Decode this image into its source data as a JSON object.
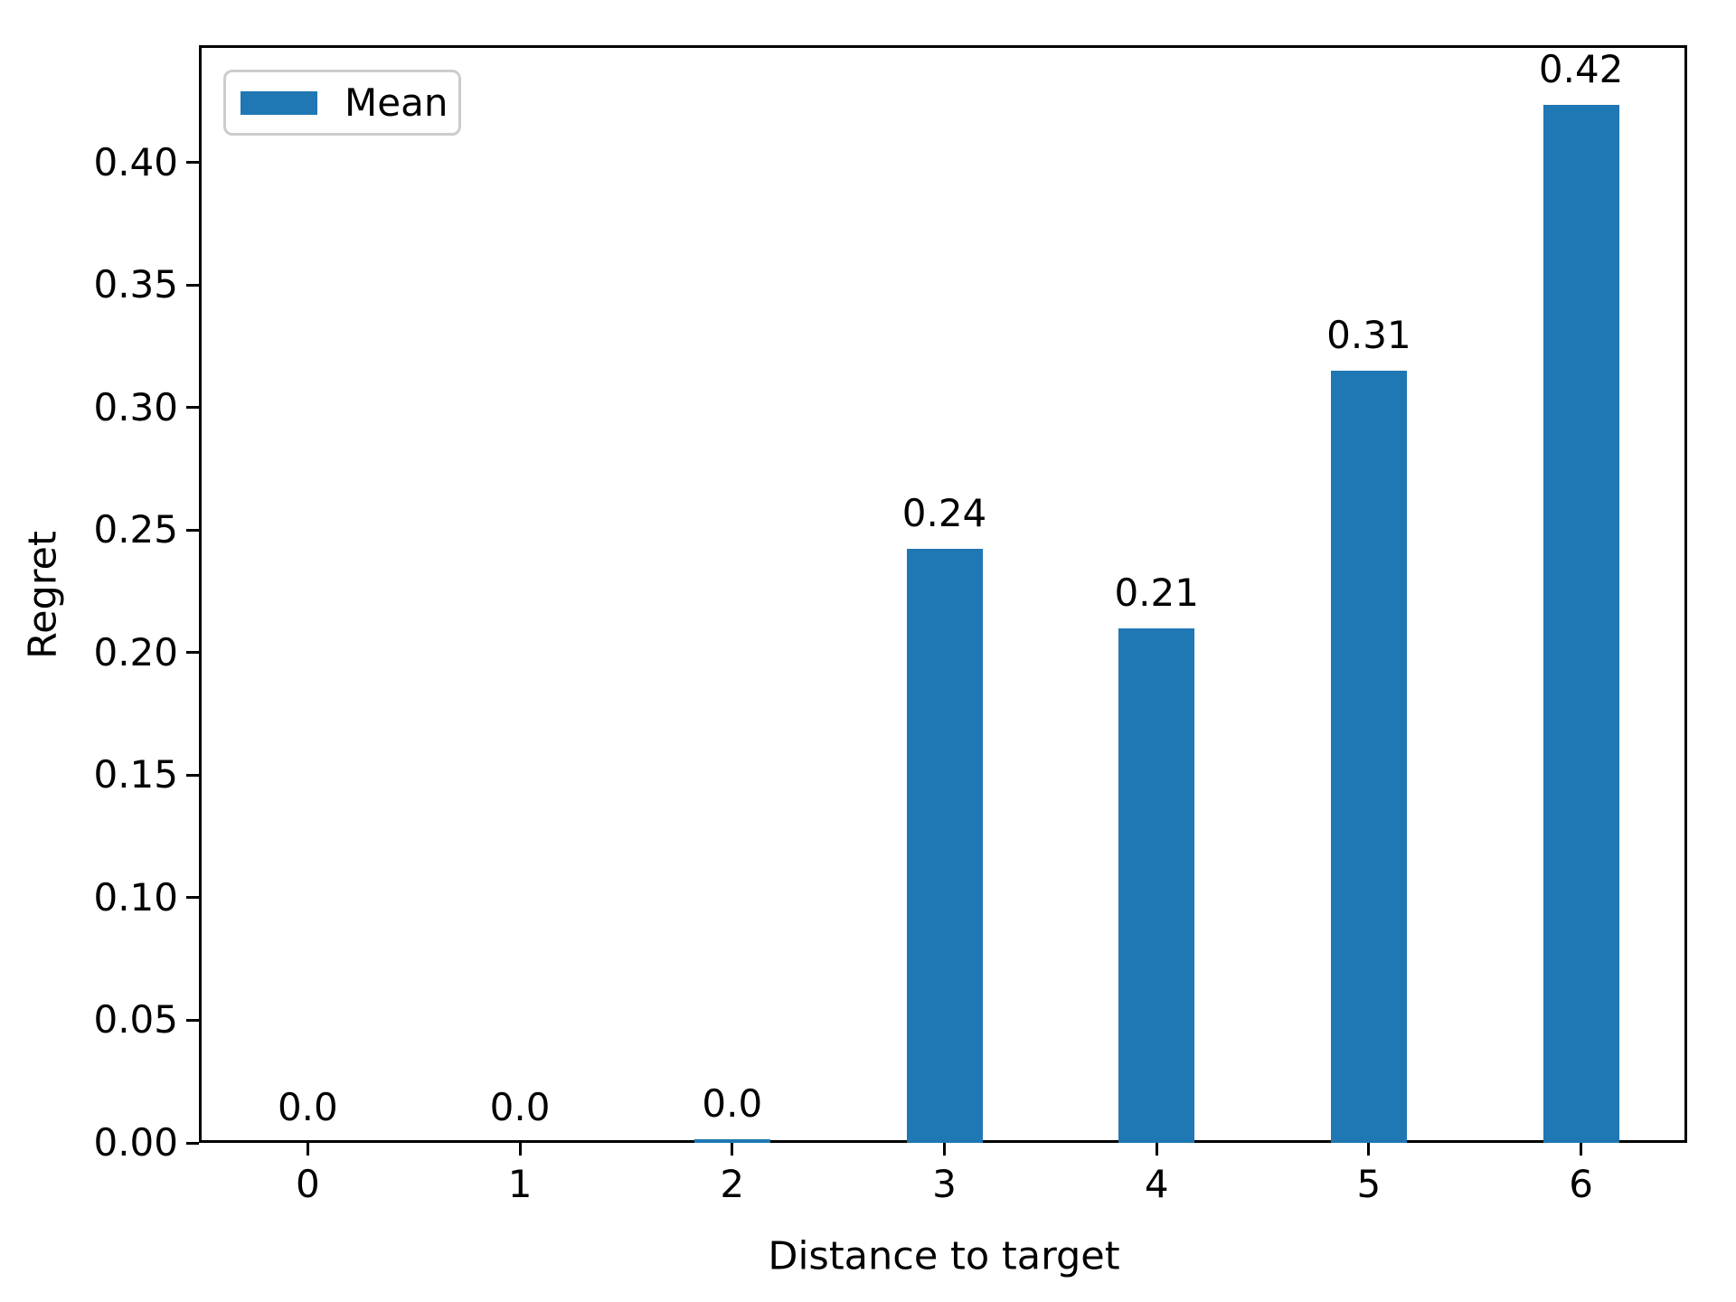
{
  "chart_data": {
    "type": "bar",
    "title": "",
    "xlabel": "Distance to target",
    "ylabel": "Regret",
    "categories": [
      "0",
      "1",
      "2",
      "3",
      "4",
      "5",
      "6"
    ],
    "series": [
      {
        "name": "Mean",
        "values": [
          0.0,
          0.0,
          0.0,
          0.24,
          0.21,
          0.31,
          0.42
        ]
      }
    ],
    "bar_value_labels": [
      "0.0",
      "0.0",
      "0.0",
      "0.24",
      "0.21",
      "0.31",
      "0.42"
    ],
    "rendered_bar_heights": [
      0.0,
      0.0,
      0.0015,
      0.2425,
      0.21,
      0.315,
      0.4235
    ],
    "y_tick_labels": [
      "0.00",
      "0.05",
      "0.10",
      "0.15",
      "0.20",
      "0.25",
      "0.30",
      "0.35",
      "0.40"
    ],
    "y_tick_values": [
      0.0,
      0.05,
      0.1,
      0.15,
      0.2,
      0.25,
      0.3,
      0.35,
      0.4
    ],
    "ylim": [
      0,
      0.4467
    ],
    "xlim_units": [
      -0.5,
      6.5
    ],
    "grid": false,
    "legend": {
      "position": "upper-left",
      "entries": [
        "Mean"
      ]
    },
    "bar_color": "#1f77b4",
    "text_color": "#000000",
    "spine_color": "#000000",
    "legend_border_color": "#cccccc"
  }
}
